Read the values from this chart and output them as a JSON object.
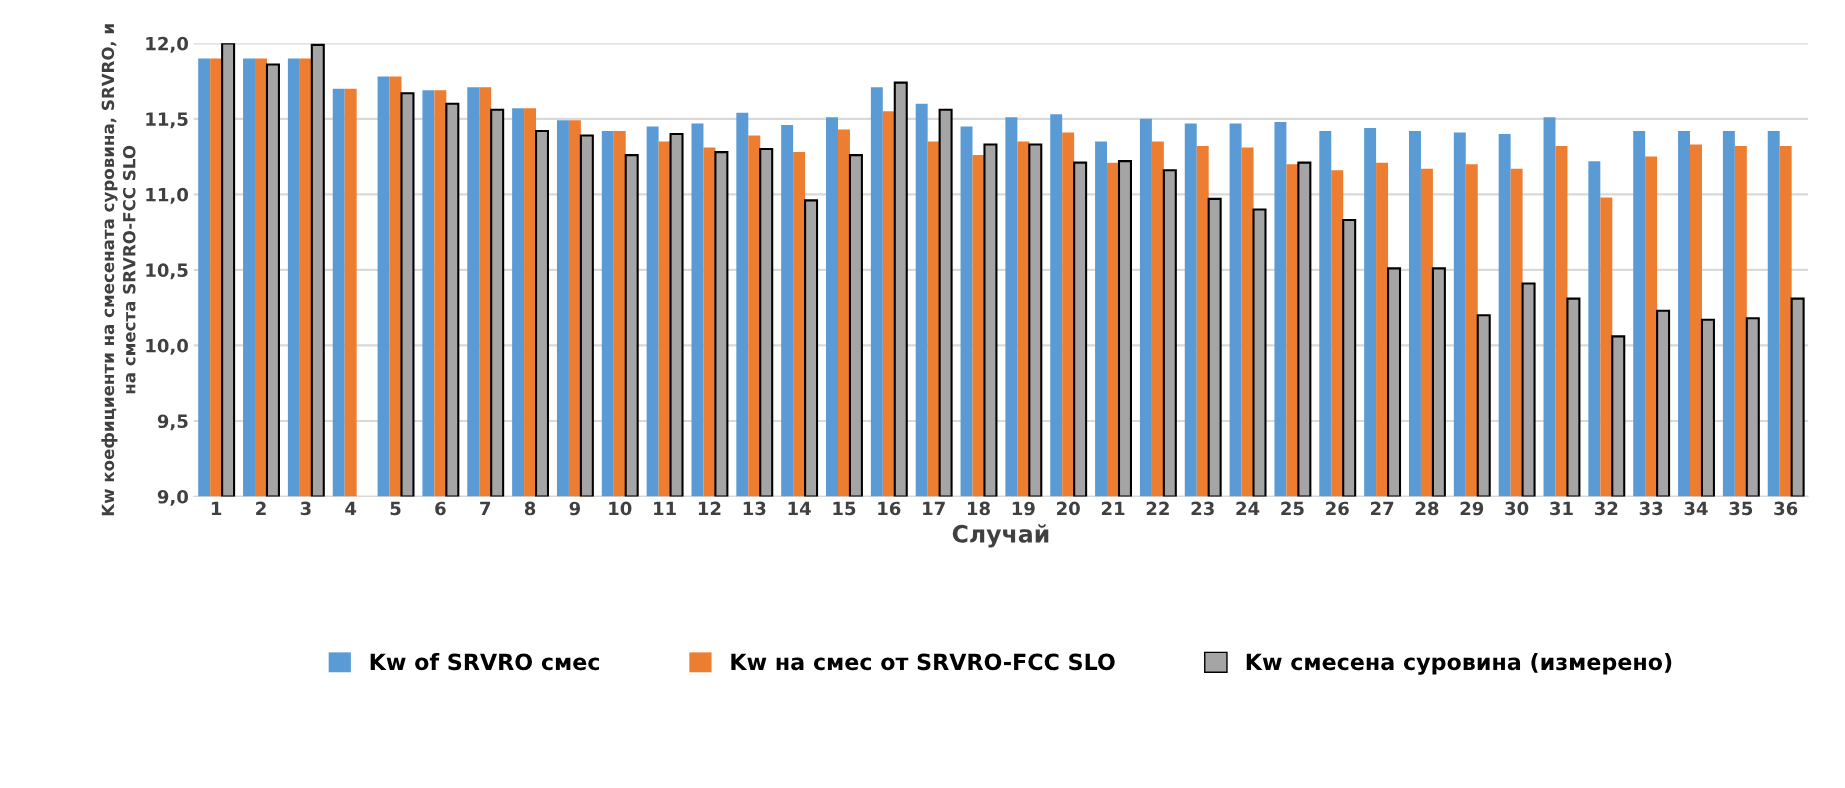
{
  "chart_data": {
    "type": "bar",
    "xlabel": "Случай",
    "ylabel": "Kw коефициенти на смесената суровина, SRVRO, и\nна сместа SRVRO-FCC SLO",
    "categories": [
      "1",
      "2",
      "3",
      "4",
      "5",
      "6",
      "7",
      "8",
      "9",
      "10",
      "11",
      "12",
      "13",
      "14",
      "15",
      "16",
      "17",
      "18",
      "19",
      "20",
      "21",
      "22",
      "23",
      "24",
      "25",
      "26",
      "27",
      "28",
      "29",
      "30",
      "31",
      "32",
      "33",
      "34",
      "35",
      "36"
    ],
    "series": [
      {
        "name": "Kw of SRVRO смес",
        "color": "#5b9bd5",
        "values": [
          11.9,
          11.9,
          11.9,
          11.7,
          11.78,
          11.69,
          11.71,
          11.57,
          11.49,
          11.42,
          11.45,
          11.47,
          11.54,
          11.46,
          11.51,
          11.71,
          11.6,
          11.45,
          11.51,
          11.53,
          11.35,
          11.5,
          11.47,
          11.47,
          11.48,
          11.42,
          11.44,
          11.42,
          11.41,
          11.4,
          11.51,
          11.22,
          11.42,
          11.42,
          11.42,
          11.42
        ]
      },
      {
        "name": "Kw на смес от SRVRO-FCC SLO",
        "color": "#ed7d31",
        "values": [
          11.9,
          11.9,
          11.9,
          11.7,
          11.78,
          11.69,
          11.71,
          11.57,
          11.49,
          11.42,
          11.35,
          11.31,
          11.39,
          11.28,
          11.43,
          11.55,
          11.35,
          11.26,
          11.35,
          11.41,
          11.21,
          11.35,
          11.32,
          11.31,
          11.2,
          11.16,
          11.21,
          11.17,
          11.2,
          11.17,
          11.32,
          10.98,
          11.25,
          11.33,
          11.32,
          11.32
        ]
      },
      {
        "name": "Kw смесена суровина (измерено)",
        "color": "#a5a5a5",
        "values": [
          12.0,
          11.86,
          11.99,
          null,
          11.67,
          11.6,
          11.56,
          11.42,
          11.39,
          11.26,
          11.4,
          11.28,
          11.3,
          10.96,
          11.26,
          11.74,
          11.56,
          11.33,
          11.33,
          11.21,
          11.22,
          11.16,
          10.97,
          10.9,
          11.21,
          10.83,
          10.51,
          10.51,
          10.2,
          10.41,
          10.31,
          10.06,
          10.23,
          10.17,
          10.18,
          10.31
        ]
      }
    ],
    "ylim": [
      9.0,
      12.0
    ],
    "yticks": [
      {
        "value": 9.0,
        "label": "9,0"
      },
      {
        "value": 9.5,
        "label": "9,5"
      },
      {
        "value": 10.0,
        "label": "10,0"
      },
      {
        "value": 10.5,
        "label": "10,5"
      },
      {
        "value": 11.0,
        "label": "11,0"
      },
      {
        "value": 11.5,
        "label": "11,5"
      },
      {
        "value": 12.0,
        "label": "12,0"
      }
    ],
    "grid": "y",
    "legend": "bottom"
  }
}
